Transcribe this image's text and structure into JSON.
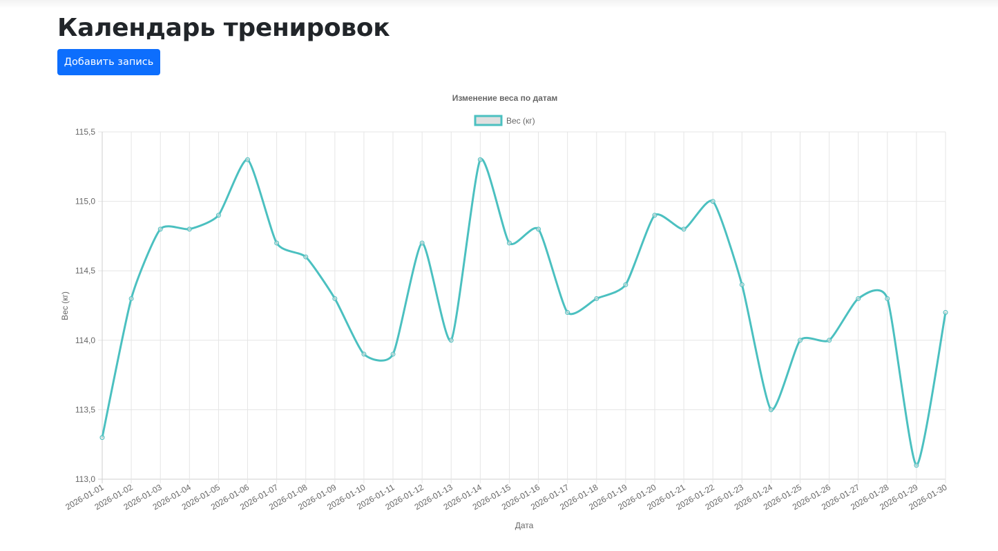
{
  "page": {
    "title": "Календарь тренировок",
    "add_button_label": "Добавить запись"
  },
  "colors": {
    "primary_button": "#0d6efd",
    "line": "#4bc0c0",
    "legend_fill": "#e0e0e0",
    "grid": "#e5e5e5",
    "text": "#666666"
  },
  "chart_data": {
    "type": "line",
    "title": "Изменение веса по датам",
    "xlabel": "Дата",
    "ylabel": "Вес (кг)",
    "legend": [
      "Вес (кг)"
    ],
    "legend_position": "top",
    "grid": true,
    "ylim": [
      113.0,
      115.5
    ],
    "yticks": [
      "113,0",
      "113,5",
      "114,0",
      "114,5",
      "115,0",
      "115,5"
    ],
    "categories": [
      "2026-01-01",
      "2026-01-02",
      "2026-01-03",
      "2026-01-04",
      "2026-01-05",
      "2026-01-06",
      "2026-01-07",
      "2026-01-08",
      "2026-01-09",
      "2026-01-10",
      "2026-01-11",
      "2026-01-12",
      "2026-01-13",
      "2026-01-14",
      "2026-01-15",
      "2026-01-16",
      "2026-01-17",
      "2026-01-18",
      "2026-01-19",
      "2026-01-20",
      "2026-01-21",
      "2026-01-22",
      "2026-01-23",
      "2026-01-24",
      "2026-01-25",
      "2026-01-26",
      "2026-01-27",
      "2026-01-28",
      "2026-01-29",
      "2026-01-30"
    ],
    "series": [
      {
        "name": "Вес (кг)",
        "values": [
          113.3,
          114.3,
          114.8,
          114.8,
          114.9,
          115.3,
          114.7,
          114.6,
          114.3,
          113.9,
          113.9,
          114.7,
          114.0,
          115.3,
          114.7,
          114.8,
          114.2,
          114.3,
          114.4,
          114.9,
          114.8,
          115.0,
          114.4,
          113.5,
          114.0,
          114.0,
          114.3,
          114.3,
          113.1,
          114.2
        ]
      }
    ]
  }
}
